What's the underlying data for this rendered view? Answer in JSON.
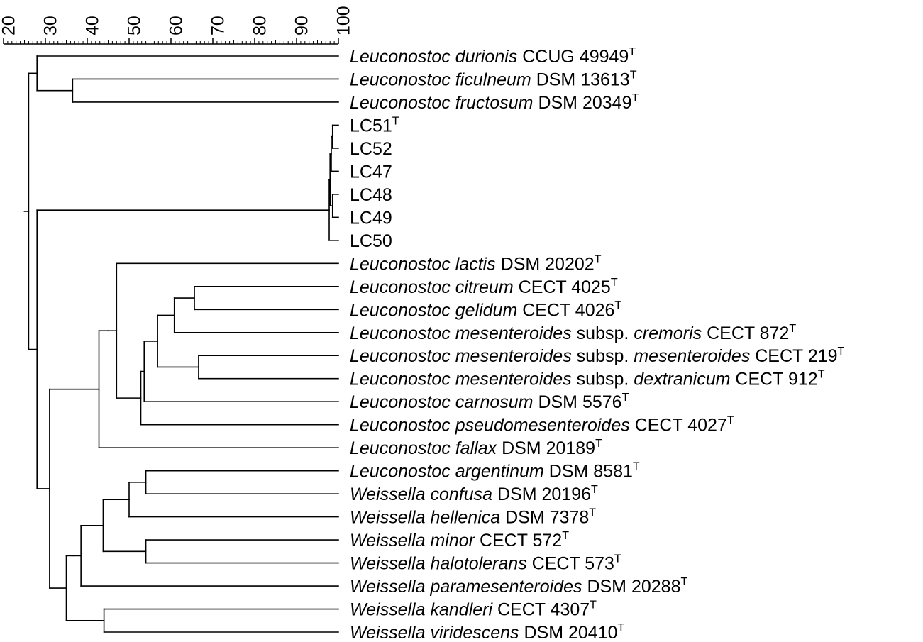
{
  "scale": {
    "min": 20,
    "max": 100,
    "labels": [
      20,
      30,
      40,
      50,
      60,
      70,
      80,
      90,
      100
    ]
  },
  "taxa": [
    {
      "genus": "Leuconostoc",
      "species": "durionis",
      "strain": "CCUG 49949",
      "type_mark": "T"
    },
    {
      "genus": "Leuconostoc",
      "species": "ficulneum",
      "strain": "DSM 13613",
      "type_mark": "T"
    },
    {
      "genus": "Leuconostoc",
      "species": "fructosum",
      "strain": "DSM 20349",
      "type_mark": "T"
    },
    {
      "genus": "",
      "species": "",
      "strain": "LC51",
      "type_mark": "T"
    },
    {
      "genus": "",
      "species": "",
      "strain": "LC52",
      "type_mark": ""
    },
    {
      "genus": "",
      "species": "",
      "strain": "LC47",
      "type_mark": ""
    },
    {
      "genus": "",
      "species": "",
      "strain": "LC48",
      "type_mark": ""
    },
    {
      "genus": "",
      "species": "",
      "strain": "LC49",
      "type_mark": ""
    },
    {
      "genus": "",
      "species": "",
      "strain": "LC50",
      "type_mark": ""
    },
    {
      "genus": "Leuconostoc",
      "species": "lactis",
      "strain": "DSM 20202",
      "type_mark": "T"
    },
    {
      "genus": "Leuconostoc",
      "species": "citreum",
      "strain": "CECT 4025",
      "type_mark": "T"
    },
    {
      "genus": "Leuconostoc",
      "species": "gelidum",
      "strain": "CECT 4026",
      "type_mark": "T"
    },
    {
      "genus": "Leuconostoc",
      "species": "mesenteroides",
      "subsp_word": "subsp.",
      "subspecies": "cremoris",
      "strain": "CECT 872",
      "type_mark": "T"
    },
    {
      "genus": "Leuconostoc",
      "species": "mesenteroides",
      "subsp_word": "subsp.",
      "subspecies": "mesenteroides",
      "strain": "CECT 219",
      "type_mark": "T"
    },
    {
      "genus": "Leuconostoc",
      "species": "mesenteroides",
      "subsp_word": "subsp.",
      "subspecies": "dextranicum",
      "strain": "CECT 912",
      "type_mark": "T"
    },
    {
      "genus": "Leuconostoc",
      "species": "carnosum",
      "strain": "DSM 5576",
      "type_mark": "T"
    },
    {
      "genus": "Leuconostoc",
      "species": "pseudomesenteroides",
      "strain": "CECT 4027",
      "type_mark": "T"
    },
    {
      "genus": "Leuconostoc",
      "species": "fallax",
      "strain": "DSM 20189",
      "type_mark": "T"
    },
    {
      "genus": "Leuconostoc",
      "species": "argentinum",
      "strain": "DSM 8581",
      "type_mark": "T"
    },
    {
      "genus": "Weissella",
      "species": "confusa",
      "strain": "DSM 20196",
      "type_mark": "T"
    },
    {
      "genus": "Weissella",
      "species": "hellenica",
      "strain": "DSM 7378",
      "type_mark": "T"
    },
    {
      "genus": "Weissella",
      "species": "minor",
      "strain": "CECT 572",
      "type_mark": "T"
    },
    {
      "genus": "Weissella",
      "species": "halotolerans",
      "strain": "CECT 573",
      "type_mark": "T"
    },
    {
      "genus": "Weissella",
      "species": "paramesenteroides",
      "strain": "DSM 20288",
      "type_mark": "T"
    },
    {
      "genus": "Weissella",
      "species": "kandleri",
      "strain": "CECT 4307",
      "type_mark": "T"
    },
    {
      "genus": "Weissella",
      "species": "viridescens",
      "strain": "DSM 20410",
      "type_mark": "T"
    }
  ],
  "tree": {
    "sim": 26.0,
    "children": [
      {
        "sim": 28.0,
        "children": [
          {
            "leaf": 0
          },
          {
            "sim": 36.5,
            "children": [
              {
                "leaf": 1
              },
              {
                "leaf": 2
              }
            ]
          }
        ]
      },
      {
        "sim": 28.0,
        "children": [
          {
            "sim": 97.8,
            "children": [
              {
                "sim": 98.0,
                "children": [
                  {
                    "sim": 98.3,
                    "children": [
                      {
                        "sim": 98.6,
                        "children": [
                          {
                            "leaf": 3
                          },
                          {
                            "leaf": 4
                          }
                        ]
                      },
                      {
                        "leaf": 5
                      }
                    ]
                  },
                  {
                    "sim": 98.6,
                    "children": [
                      {
                        "leaf": 6
                      },
                      {
                        "leaf": 7
                      }
                    ]
                  }
                ]
              },
              {
                "leaf": 8
              }
            ]
          },
          {
            "sim": 31.0,
            "children": [
              {
                "sim": 42.8,
                "children": [
                  {
                    "sim": 45.0,
                    "children": [
                      {
                        "sim": 47.0,
                        "children": [
                          {
                            "leaf": 9
                          },
                          {
                            "sim": 52.8,
                            "children": [
                              {
                                "sim": 53.6,
                                "children": [
                                  {
                                    "sim": 56.8,
                                    "children": [
                                      {
                                        "sim": 60.8,
                                        "children": [
                                          {
                                            "sim": 65.6,
                                            "children": [
                                              {
                                                "leaf": 10
                                              },
                                              {
                                                "leaf": 11
                                              }
                                            ]
                                          },
                                          {
                                            "leaf": 12
                                          }
                                        ]
                                      },
                                      {
                                        "sim": 66.6,
                                        "children": [
                                          {
                                            "leaf": 13
                                          },
                                          {
                                            "leaf": 14
                                          }
                                        ]
                                      }
                                    ]
                                  },
                                  {
                                    "leaf": 15
                                  }
                                ]
                              },
                              {
                                "leaf": 16
                              }
                            ]
                          }
                        ]
                      }
                    ]
                  },
                  {
                    "leaf": 17
                  }
                ]
              },
              {
                "sim": 35.0,
                "children": [
                  {
                    "sim": 36.8,
                    "children": [
                      {
                        "sim": 38.5,
                        "children": [
                          {
                            "sim": 43.8,
                            "children": [
                              {
                                "sim": 50.0,
                                "children": [
                                  {
                                    "sim": 54.0,
                                    "children": [
                                      {
                                        "leaf": 18
                                      },
                                      {
                                        "leaf": 19
                                      }
                                    ]
                                  },
                                  {
                                    "leaf": 20
                                  }
                                ]
                              },
                              {
                                "sim": 54.0,
                                "children": [
                                  {
                                    "leaf": 21
                                  },
                                  {
                                    "leaf": 22
                                  }
                                ]
                              }
                            ]
                          },
                          {
                            "leaf": 23
                          }
                        ]
                      }
                    ]
                  },
                  {
                    "sim": 44.0,
                    "children": [
                      {
                        "leaf": 24
                      },
                      {
                        "leaf": 25
                      }
                    ]
                  }
                ]
              }
            ]
          }
        ]
      }
    ]
  }
}
